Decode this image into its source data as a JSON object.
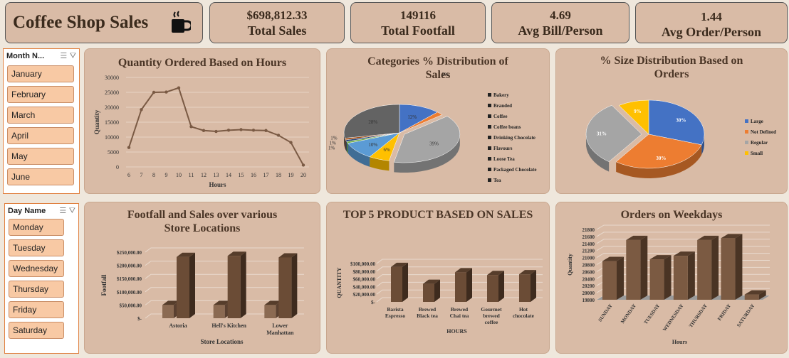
{
  "header": {
    "title": "Coffee Shop Sales",
    "kpis": [
      {
        "value": "$698,812.33",
        "label": "Total Sales"
      },
      {
        "value": "149116",
        "label": "Total Footfall"
      },
      {
        "value": "4.69",
        "label": "Avg Bill/Person"
      },
      {
        "value": "1.44",
        "label": "Avg Order/Person"
      }
    ]
  },
  "slicers": {
    "month": {
      "header": "Month N...",
      "items": [
        "January",
        "February",
        "March",
        "April",
        "May",
        "June"
      ]
    },
    "day": {
      "header": "Day Name",
      "items": [
        "Monday",
        "Tuesday",
        "Wednesday",
        "Thursday",
        "Friday",
        "Saturday"
      ]
    }
  },
  "colors": {
    "card": "#d9bba6",
    "line": "#7a5a44",
    "bar_front": "#6b4c36",
    "bar_side": "#3e2b1e"
  },
  "chart_data": [
    {
      "id": "hours",
      "type": "line",
      "title": "Quantity Ordered Based on Hours",
      "xlabel": "Hours",
      "ylabel": "Quantity",
      "x": [
        6,
        7,
        8,
        9,
        10,
        11,
        12,
        13,
        14,
        15,
        16,
        17,
        18,
        19,
        20
      ],
      "values": [
        6500,
        19200,
        25000,
        25100,
        26500,
        13500,
        12200,
        11900,
        12300,
        12500,
        12300,
        12200,
        10600,
        8200,
        600
      ],
      "yticks": [
        "0",
        "5000",
        "10000",
        "15000",
        "20000",
        "25000",
        "30000"
      ],
      "ylim": [
        0,
        30000
      ]
    },
    {
      "id": "categories",
      "type": "pie",
      "title": "Categories % Distribution of Sales",
      "categories": [
        "Bakery",
        "Branded",
        "Coffee",
        "Coffee beans",
        "Drinking Chocolate",
        "Flavours",
        "Loose Tea",
        "Packaged Chocolate",
        "Tea"
      ],
      "values": [
        12,
        2,
        39,
        6,
        10,
        1,
        1,
        1,
        28
      ],
      "labels": [
        "12%",
        "2%",
        "39%",
        "6%",
        "10%",
        "1%",
        "1%",
        "1%",
        "28%"
      ],
      "colors": [
        "#4472c4",
        "#ed7d31",
        "#a5a5a5",
        "#ffc000",
        "#5b9bd5",
        "#70ad47",
        "#264478",
        "#9e480e",
        "#636363"
      ]
    },
    {
      "id": "sizes",
      "type": "pie",
      "title": "% Size Distribution Based on Orders",
      "categories": [
        "Large",
        "Not Defined",
        "Regular",
        "Small"
      ],
      "values": [
        30,
        30,
        31,
        9
      ],
      "labels": [
        "30%",
        "30%",
        "31%",
        "9%"
      ],
      "colors": [
        "#4472c4",
        "#ed7d31",
        "#a5a5a5",
        "#ffc000"
      ]
    },
    {
      "id": "locations",
      "type": "bar",
      "title": "Footfall and Sales over various Store Locations",
      "xlabel": "Store Locations",
      "ylabel": "Footfall",
      "categories": [
        "Astoria",
        "Hell's Kitchen",
        "Lower Manhattan"
      ],
      "series": [
        {
          "values": [
            50000,
            50000,
            50000
          ]
        },
        {
          "values": [
            232000,
            236000,
            230000
          ]
        }
      ],
      "yticks": [
        "$-",
        "$50,000.00",
        "$100,000.00",
        "$150,000.00",
        "$200,000.00",
        "$250,000.00"
      ],
      "ylim": [
        0,
        250000
      ]
    },
    {
      "id": "products",
      "type": "bar",
      "title": "TOP 5 PRODUCT BASED ON SALES",
      "xlabel": "HOURS",
      "ylabel": "QUANTITY",
      "categories": [
        "Barista Espresso",
        "Brewed Black tea",
        "Brewed Chai tea",
        "Gourmet brewed coffee",
        "Hot chocolate"
      ],
      "values": [
        91000,
        47000,
        77000,
        70000,
        72000
      ],
      "yticks": [
        "$-",
        "$20,000.00",
        "$40,000.00",
        "$60,000.00",
        "$80,000.00",
        "$100,000.00"
      ],
      "ylim": [
        0,
        100000
      ]
    },
    {
      "id": "weekdays",
      "type": "bar",
      "title": "Orders on Weekdays",
      "xlabel": "Hours",
      "ylabel": "Quantity",
      "categories": [
        "SUNDAY",
        "MONDAY",
        "TUESDAY",
        "WEDNESDAY",
        "THURSDAY",
        "FRIDAY",
        "SATURDAY"
      ],
      "values": [
        20900,
        21500,
        20950,
        21050,
        21500,
        21550,
        19950
      ],
      "yticks": [
        "19800",
        "20000",
        "20200",
        "20400",
        "20600",
        "20800",
        "21000",
        "21200",
        "21400",
        "21600",
        "21800"
      ],
      "ylim": [
        19800,
        21800
      ]
    }
  ]
}
